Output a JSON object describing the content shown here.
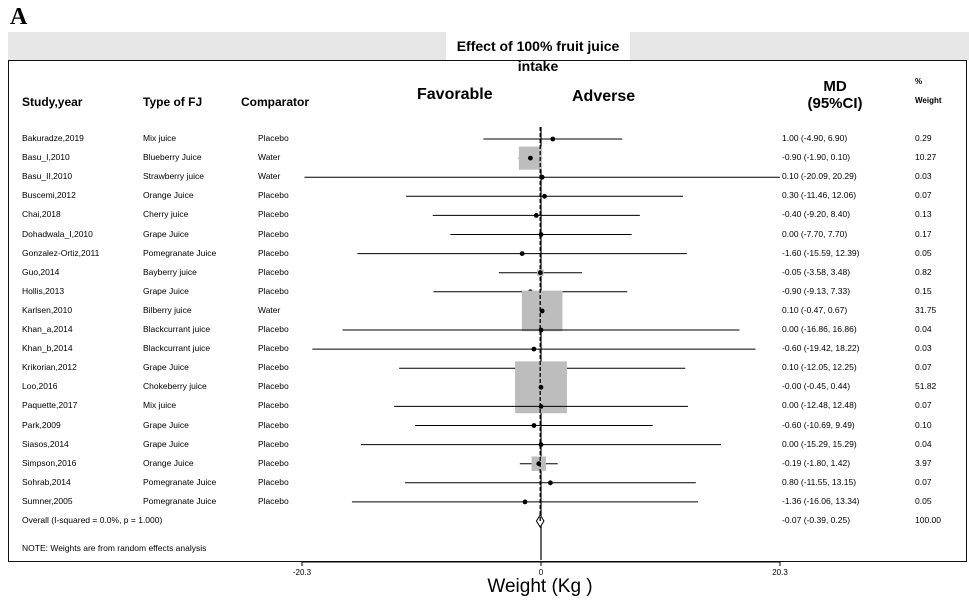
{
  "panel_label": "A",
  "headers": {
    "effect_title": "Effect of 100% fruit juice intake",
    "study": "Study,year",
    "type": "Type of FJ",
    "comparator": "Comparator",
    "favorable": "Favorable",
    "adverse": "Adverse",
    "md_line1": "MD",
    "md_line2": "(95%CI)",
    "weight_line1": "%",
    "weight_line2": "Weight"
  },
  "note": "NOTE: Weights are from random effects analysis",
  "chart_data": {
    "type": "forest",
    "xlabel": "Weight (Kg )",
    "xlim": [
      -20.3,
      20.3
    ],
    "ticks": [
      "-20.3",
      "0",
      "20.3"
    ],
    "tick_values": [
      -20.3,
      0,
      20.3
    ],
    "reference_line": 0,
    "pooled_line": -0.07,
    "box_color": "#bdbdbd",
    "studies": [
      {
        "study": "Bakuradze,2019",
        "type": "Mix juice",
        "comparator": "Placebo",
        "md": 1.0,
        "lo": -4.9,
        "hi": 6.9,
        "ci_text": "1.00 (-4.90, 6.90)",
        "weight": 0.29,
        "weight_text": "0.29"
      },
      {
        "study": "Basu_I,2010",
        "type": "Blueberry Juice",
        "comparator": "Water",
        "md": -0.9,
        "lo": -1.9,
        "hi": 0.1,
        "ci_text": "-0.90 (-1.90, 0.10)",
        "weight": 10.27,
        "weight_text": "10.27"
      },
      {
        "study": "Basu_II,2010",
        "type": "Strawberry juice",
        "comparator": "Water",
        "md": 0.1,
        "lo": -20.09,
        "hi": 20.29,
        "ci_text": "0.10 (-20.09, 20.29)",
        "weight": 0.03,
        "weight_text": "0.03"
      },
      {
        "study": "Buscemi,2012",
        "type": "Orange Juice",
        "comparator": "Placebo",
        "md": 0.3,
        "lo": -11.46,
        "hi": 12.06,
        "ci_text": "0.30 (-11.46, 12.06)",
        "weight": 0.07,
        "weight_text": "0.07"
      },
      {
        "study": "Chai,2018",
        "type": "Cherry juice",
        "comparator": "Placebo",
        "md": -0.4,
        "lo": -9.2,
        "hi": 8.4,
        "ci_text": "-0.40 (-9.20, 8.40)",
        "weight": 0.13,
        "weight_text": "0.13"
      },
      {
        "study": "Dohadwala_I,2010",
        "type": "Grape Juice",
        "comparator": "Placebo",
        "md": 0.0,
        "lo": -7.7,
        "hi": 7.7,
        "ci_text": "0.00 (-7.70, 7.70)",
        "weight": 0.17,
        "weight_text": "0.17"
      },
      {
        "study": "Gonzalez-Ortiz,2011",
        "type": "Pomegranate Juice",
        "comparator": "Placebo",
        "md": -1.6,
        "lo": -15.59,
        "hi": 12.39,
        "ci_text": "-1.60 (-15.59, 12.39)",
        "weight": 0.05,
        "weight_text": "0.05"
      },
      {
        "study": "Guo,2014",
        "type": "Bayberry juice",
        "comparator": "Placebo",
        "md": -0.05,
        "lo": -3.58,
        "hi": 3.48,
        "ci_text": "-0.05 (-3.58, 3.48)",
        "weight": 0.82,
        "weight_text": "0.82"
      },
      {
        "study": "Hollis,2013",
        "type": "Grape Juice",
        "comparator": "Placebo",
        "md": -0.9,
        "lo": -9.13,
        "hi": 7.33,
        "ci_text": "-0.90 (-9.13, 7.33)",
        "weight": 0.15,
        "weight_text": "0.15"
      },
      {
        "study": "Karlsen,2010",
        "type": "Bilberry juice",
        "comparator": "Water",
        "md": 0.1,
        "lo": -0.47,
        "hi": 0.67,
        "ci_text": "0.10 (-0.47, 0.67)",
        "weight": 31.75,
        "weight_text": "31.75"
      },
      {
        "study": "Khan_a,2014",
        "type": "Blackcurrant juice",
        "comparator": "Placebo",
        "md": 0.0,
        "lo": -16.86,
        "hi": 16.86,
        "ci_text": "0.00 (-16.86, 16.86)",
        "weight": 0.04,
        "weight_text": "0.04"
      },
      {
        "study": "Khan_b,2014",
        "type": "Blackcurrant juice",
        "comparator": "Placebo",
        "md": -0.6,
        "lo": -19.42,
        "hi": 18.22,
        "ci_text": "-0.60 (-19.42, 18.22)",
        "weight": 0.03,
        "weight_text": "0.03"
      },
      {
        "study": "Krikorian,2012",
        "type": "Grape Juice",
        "comparator": "Placebo",
        "md": 0.1,
        "lo": -12.05,
        "hi": 12.25,
        "ci_text": "0.10 (-12.05, 12.25)",
        "weight": 0.07,
        "weight_text": "0.07"
      },
      {
        "study": "Loo,2016",
        "type": "Chokeberry juice",
        "comparator": "Placebo",
        "md": -0.0,
        "lo": -0.45,
        "hi": 0.44,
        "ci_text": "-0.00 (-0.45, 0.44)",
        "weight": 51.82,
        "weight_text": "51.82"
      },
      {
        "study": "Paquette,2017",
        "type": "Mix juice",
        "comparator": "Placebo",
        "md": 0.0,
        "lo": -12.48,
        "hi": 12.48,
        "ci_text": "0.00 (-12.48, 12.48)",
        "weight": 0.07,
        "weight_text": "0.07"
      },
      {
        "study": "Park,2009",
        "type": "Grape Juice",
        "comparator": "Placebo",
        "md": -0.6,
        "lo": -10.69,
        "hi": 9.49,
        "ci_text": "-0.60 (-10.69, 9.49)",
        "weight": 0.1,
        "weight_text": "0.10"
      },
      {
        "study": "Siasos,2014",
        "type": "Grape Juice",
        "comparator": "Placebo",
        "md": 0.0,
        "lo": -15.29,
        "hi": 15.29,
        "ci_text": "0.00 (-15.29, 15.29)",
        "weight": 0.04,
        "weight_text": "0.04"
      },
      {
        "study": "Simpson,2016",
        "type": "Orange Juice",
        "comparator": "Placebo",
        "md": -0.19,
        "lo": -1.8,
        "hi": 1.42,
        "ci_text": "-0.19 (-1.80, 1.42)",
        "weight": 3.97,
        "weight_text": "3.97"
      },
      {
        "study": "Sohrab,2014",
        "type": "Pomegranate Juice",
        "comparator": "Placebo",
        "md": 0.8,
        "lo": -11.55,
        "hi": 13.15,
        "ci_text": "0.80 (-11.55, 13.15)",
        "weight": 0.07,
        "weight_text": "0.07"
      },
      {
        "study": "Sumner,2005",
        "type": "Pomegranate Juice",
        "comparator": "Placebo",
        "md": -1.36,
        "lo": -16.06,
        "hi": 13.34,
        "ci_text": "-1.36 (-16.06, 13.34)",
        "weight": 0.05,
        "weight_text": "0.05"
      }
    ],
    "overall": {
      "label": "Overall  (I-squared = 0.0%, p = 1.000)",
      "md": -0.07,
      "lo": -0.39,
      "hi": 0.25,
      "ci_text": "-0.07 (-0.39, 0.25)",
      "weight": 100.0,
      "weight_text": "100.00"
    }
  }
}
